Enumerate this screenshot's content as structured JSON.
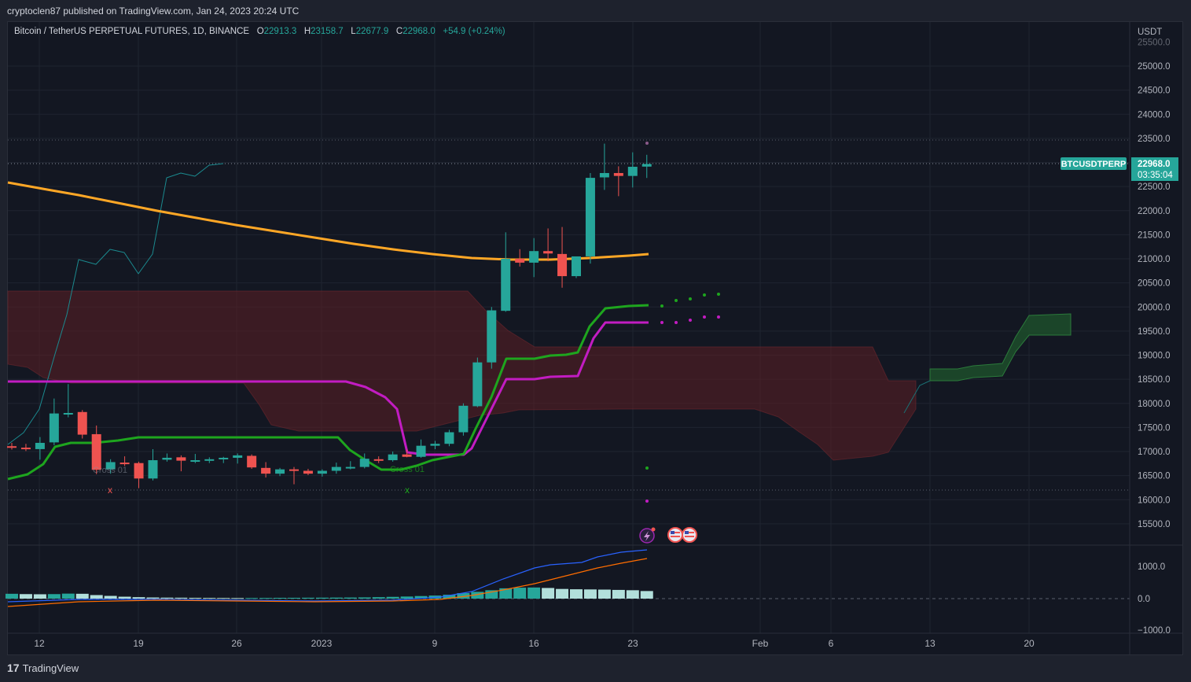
{
  "publish_line": "cryptoclen87 published on TradingView.com, Jan 24, 2023 20:24 UTC",
  "legend": {
    "symbol": "Bitcoin / TetherUS PERPETUAL FUTURES, 1D, BINANCE",
    "o_label": "O",
    "o_value": "22913.3",
    "h_label": "H",
    "h_value": "23158.7",
    "l_label": "L",
    "l_value": "22677.9",
    "c_label": "C",
    "c_value": "22968.0",
    "change": "+54.9 (+0.24%)"
  },
  "price_axis": {
    "currency": "USDT",
    "ticks": [
      "25500.0",
      "25000.0",
      "24500.0",
      "24000.0",
      "23500.0",
      "23000.0",
      "22500.0",
      "22000.0",
      "21500.0",
      "21000.0",
      "20500.0",
      "20000.0",
      "19500.0",
      "19000.0",
      "18500.0",
      "18000.0",
      "17500.0",
      "17000.0",
      "16500.0",
      "16000.0",
      "15500.0"
    ],
    "last_label": "BTCUSDTPERP",
    "last_price": "22968.0",
    "countdown": "03:35:04"
  },
  "macd_axis": {
    "ticks": [
      "1000.0",
      "0.0",
      "−1000.0"
    ]
  },
  "time_axis": {
    "ticks": [
      "12",
      "19",
      "26",
      "2023",
      "9",
      "16",
      "23",
      "Feb",
      "6",
      "13",
      "20"
    ]
  },
  "annotations": {
    "cross_label": "Cross 01",
    "cross_marker": "x"
  },
  "footer": {
    "logo": "TradingView"
  },
  "colors": {
    "up": "#26a69a",
    "down": "#ef5350",
    "ema": "#ffa726",
    "tenkan": "#1ea51e",
    "kijun": "#c21cc2",
    "cloud_bear": "#5d1f24",
    "cloud_bull": "#1d4d2a",
    "lagging": "#1b8a8f",
    "macd": "#2962ff",
    "signal": "#ff6d00"
  },
  "chart_data": {
    "type": "candlestick",
    "symbol": "BTCUSDTPERP",
    "interval": "1D",
    "ylim": [
      15000,
      25800
    ],
    "x_ticks": [
      "12",
      "19",
      "26",
      "2023",
      "9",
      "16",
      "23",
      "Feb",
      "6",
      "13",
      "20"
    ],
    "candles": [
      {
        "o": 17110,
        "h": 17180,
        "l": 17040,
        "c": 17100
      },
      {
        "o": 17080,
        "h": 17160,
        "l": 17010,
        "c": 17050
      },
      {
        "o": 17050,
        "h": 17300,
        "l": 16830,
        "c": 17180
      },
      {
        "o": 17190,
        "h": 18100,
        "l": 17130,
        "c": 17790
      },
      {
        "o": 17780,
        "h": 18400,
        "l": 17710,
        "c": 17800
      },
      {
        "o": 17820,
        "h": 17860,
        "l": 17270,
        "c": 17350
      },
      {
        "o": 17360,
        "h": 17540,
        "l": 16530,
        "c": 16620
      },
      {
        "o": 16630,
        "h": 16840,
        "l": 16540,
        "c": 16780
      },
      {
        "o": 16770,
        "h": 16900,
        "l": 16700,
        "c": 16760
      },
      {
        "o": 16760,
        "h": 16790,
        "l": 16240,
        "c": 16440
      },
      {
        "o": 16440,
        "h": 17050,
        "l": 16400,
        "c": 16820
      },
      {
        "o": 16830,
        "h": 16960,
        "l": 16790,
        "c": 16870
      },
      {
        "o": 16880,
        "h": 16920,
        "l": 16590,
        "c": 16810
      },
      {
        "o": 16810,
        "h": 16950,
        "l": 16760,
        "c": 16820
      },
      {
        "o": 16820,
        "h": 16880,
        "l": 16760,
        "c": 16840
      },
      {
        "o": 16840,
        "h": 16890,
        "l": 16760,
        "c": 16870
      },
      {
        "o": 16870,
        "h": 16960,
        "l": 16750,
        "c": 16920
      },
      {
        "o": 16910,
        "h": 16940,
        "l": 16640,
        "c": 16670
      },
      {
        "o": 16660,
        "h": 16780,
        "l": 16460,
        "c": 16540
      },
      {
        "o": 16540,
        "h": 16660,
        "l": 16490,
        "c": 16630
      },
      {
        "o": 16630,
        "h": 16680,
        "l": 16320,
        "c": 16600
      },
      {
        "o": 16600,
        "h": 16640,
        "l": 16510,
        "c": 16540
      },
      {
        "o": 16540,
        "h": 16630,
        "l": 16480,
        "c": 16600
      },
      {
        "o": 16600,
        "h": 16770,
        "l": 16540,
        "c": 16680
      },
      {
        "o": 16680,
        "h": 16800,
        "l": 16630,
        "c": 16680
      },
      {
        "o": 16680,
        "h": 16960,
        "l": 16650,
        "c": 16850
      },
      {
        "o": 16840,
        "h": 16900,
        "l": 16760,
        "c": 16820
      },
      {
        "o": 16820,
        "h": 17000,
        "l": 16790,
        "c": 16940
      },
      {
        "o": 16940,
        "h": 17040,
        "l": 16880,
        "c": 16890
      },
      {
        "o": 16890,
        "h": 17250,
        "l": 16870,
        "c": 17120
      },
      {
        "o": 17120,
        "h": 17220,
        "l": 17050,
        "c": 17160
      },
      {
        "o": 17160,
        "h": 17450,
        "l": 17110,
        "c": 17400
      },
      {
        "o": 17400,
        "h": 18000,
        "l": 17330,
        "c": 17950
      },
      {
        "o": 17940,
        "h": 18950,
        "l": 17920,
        "c": 18850
      },
      {
        "o": 18850,
        "h": 20000,
        "l": 18720,
        "c": 19930
      },
      {
        "o": 19920,
        "h": 21550,
        "l": 19900,
        "c": 21000
      },
      {
        "o": 21000,
        "h": 21200,
        "l": 20840,
        "c": 20920
      },
      {
        "o": 20920,
        "h": 21430,
        "l": 20620,
        "c": 21160
      },
      {
        "o": 21160,
        "h": 21630,
        "l": 20950,
        "c": 21110
      },
      {
        "o": 21100,
        "h": 21660,
        "l": 20400,
        "c": 20640
      },
      {
        "o": 20640,
        "h": 21050,
        "l": 20600,
        "c": 21050
      },
      {
        "o": 21050,
        "h": 22780,
        "l": 20900,
        "c": 22680
      },
      {
        "o": 22690,
        "h": 23390,
        "l": 22430,
        "c": 22780
      },
      {
        "o": 22780,
        "h": 22920,
        "l": 22300,
        "c": 22720
      },
      {
        "o": 22720,
        "h": 23210,
        "l": 22480,
        "c": 22910
      },
      {
        "o": 22913.3,
        "h": 23158.7,
        "l": 22677.9,
        "c": 22968.0
      }
    ],
    "macd_histogram": [
      150,
      140,
      135,
      140,
      155,
      150,
      110,
      85,
      60,
      45,
      35,
      30,
      28,
      25,
      22,
      20,
      18,
      20,
      22,
      25,
      26,
      28,
      30,
      32,
      34,
      38,
      45,
      55,
      65,
      80,
      95,
      120,
      170,
      210,
      260,
      320,
      340,
      345,
      330,
      300,
      290,
      285,
      280,
      270,
      260,
      235
    ],
    "lines": [
      "EMA",
      "Tenkan",
      "Kijun",
      "Ichimoku cloud",
      "Lagging span",
      "MACD",
      "Signal"
    ]
  }
}
